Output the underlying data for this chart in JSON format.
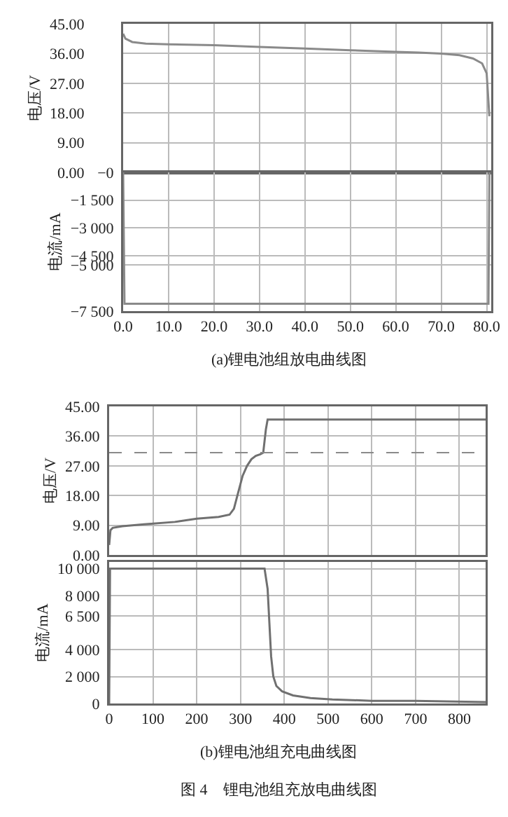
{
  "chart_data": [
    {
      "type": "line",
      "ylabel": "电压/V",
      "x": [
        0,
        0.5,
        2,
        5,
        10,
        20,
        30,
        40,
        50,
        60,
        65,
        70,
        74,
        77,
        79,
        80,
        80.6
      ],
      "series": [
        {
          "color": "#8a8a8a",
          "values": [
            42,
            40.5,
            39.5,
            39,
            38.8,
            38.5,
            38,
            37.5,
            37,
            36.5,
            36.3,
            36,
            35.5,
            34.5,
            33,
            30,
            17
          ]
        }
      ],
      "xlim": [
        0,
        81
      ],
      "ylim": [
        0,
        45
      ],
      "yticks": [
        {
          "value": 0,
          "label": "0.00"
        },
        {
          "value": 9,
          "label": "9.00"
        },
        {
          "value": 18,
          "label": "18.00"
        },
        {
          "value": 27,
          "label": "27.00"
        },
        {
          "value": 36,
          "label": "36.00"
        },
        {
          "value": 45,
          "label": "45.00"
        }
      ],
      "xticks": [
        {
          "value": 0,
          "label": null
        },
        {
          "value": 10,
          "label": null
        },
        {
          "value": 20,
          "label": null
        },
        {
          "value": 30,
          "label": null
        },
        {
          "value": 40,
          "label": null
        },
        {
          "value": 50,
          "label": null
        },
        {
          "value": 60,
          "label": null
        },
        {
          "value": 70,
          "label": null
        },
        {
          "value": 80,
          "label": null
        }
      ],
      "grid": true,
      "tick_labels": "y",
      "line_style": "solid"
    },
    {
      "type": "line",
      "ylabel": "电流/mA",
      "x": [
        0,
        0.3,
        80.4,
        80.6
      ],
      "series": [
        {
          "color": "#8a8a8a",
          "values": [
            0,
            -7100,
            -7100,
            0
          ]
        }
      ],
      "xlim": [
        0,
        81
      ],
      "ylim": [
        -7500,
        0
      ],
      "yticks": [
        {
          "value": 0,
          "label": "−0"
        },
        {
          "value": -1500,
          "label": "−1 500"
        },
        {
          "value": -3000,
          "label": "−3 000"
        },
        {
          "value": -4500,
          "label": "−4 500"
        },
        {
          "value": -5000,
          "label": "−5 000"
        },
        {
          "value": -7500,
          "label": "−7 500"
        }
      ],
      "xticks": [
        {
          "value": 0,
          "label": "0.0"
        },
        {
          "value": 10,
          "label": "10.0"
        },
        {
          "value": 20,
          "label": "20.0"
        },
        {
          "value": 30,
          "label": "30.0"
        },
        {
          "value": 40,
          "label": "40.0"
        },
        {
          "value": 50,
          "label": "50.0"
        },
        {
          "value": 60,
          "label": "60.0"
        },
        {
          "value": 70,
          "label": "70.0"
        },
        {
          "value": 80,
          "label": "80.0"
        }
      ],
      "grid": true,
      "line_style": "solid",
      "annotations": [
        "(a)锂电池组放电曲线图"
      ]
    },
    {
      "type": "line",
      "ylabel": "电压/V",
      "x": [
        0,
        3,
        8,
        30,
        80,
        150,
        200,
        250,
        275,
        285,
        295,
        305,
        315,
        325,
        335,
        345,
        352,
        358,
        362,
        400,
        600,
        860
      ],
      "series": [
        {
          "color": "#707070",
          "values": [
            3,
            7.5,
            8.2,
            8.7,
            9.3,
            10,
            11,
            11.5,
            12.2,
            14,
            19,
            24,
            27,
            29,
            30,
            30.5,
            31,
            38,
            41,
            41,
            41,
            41
          ]
        }
      ],
      "xlim": [
        0,
        860
      ],
      "ylim": [
        0,
        45
      ],
      "yticks": [
        {
          "value": 0,
          "label": "0.00"
        },
        {
          "value": 9,
          "label": "9.00"
        },
        {
          "value": 18,
          "label": "18.00"
        },
        {
          "value": 27,
          "label": "27.00"
        },
        {
          "value": 36,
          "label": "36.00"
        },
        {
          "value": 45,
          "label": "45.00"
        }
      ],
      "xticks": [
        {
          "value": 0,
          "label": null
        },
        {
          "value": 100,
          "label": null
        },
        {
          "value": 200,
          "label": null
        },
        {
          "value": 300,
          "label": null
        },
        {
          "value": 400,
          "label": null
        },
        {
          "value": 500,
          "label": null
        },
        {
          "value": 600,
          "label": null
        },
        {
          "value": 700,
          "label": null
        },
        {
          "value": 800,
          "label": null
        }
      ],
      "ref_lines": [
        {
          "axis": "y",
          "value": 31,
          "color": "#8a8a8a",
          "line_style": "dashed"
        }
      ],
      "grid": true,
      "tick_labels": "y",
      "line_style": "solid"
    },
    {
      "type": "line",
      "ylabel": "电流/mA",
      "x": [
        0,
        2,
        355,
        362,
        366,
        370,
        375,
        382,
        395,
        420,
        460,
        510,
        600,
        700,
        860
      ],
      "series": [
        {
          "color": "#707070",
          "values": [
            0,
            10000,
            10000,
            8500,
            6000,
            3500,
            2000,
            1300,
            900,
            600,
            400,
            300,
            200,
            200,
            100
          ]
        }
      ],
      "xlim": [
        0,
        860
      ],
      "ylim": [
        0,
        10500
      ],
      "yticks": [
        0,
        {
          "value": 2000,
          "label": "2 000"
        },
        {
          "value": 4000,
          "label": "4 000"
        },
        {
          "value": 6500,
          "label": "6 500"
        },
        {
          "value": 8000,
          "label": "8 000"
        },
        {
          "value": 10000,
          "label": "10 000"
        }
      ],
      "xticks": [
        0,
        100,
        200,
        300,
        400,
        500,
        600,
        700,
        800
      ],
      "grid": true,
      "line_style": "solid",
      "annotations": [
        "(b)锂电池组充电曲线图",
        "图 4　锂电池组充放电曲线图"
      ]
    }
  ]
}
